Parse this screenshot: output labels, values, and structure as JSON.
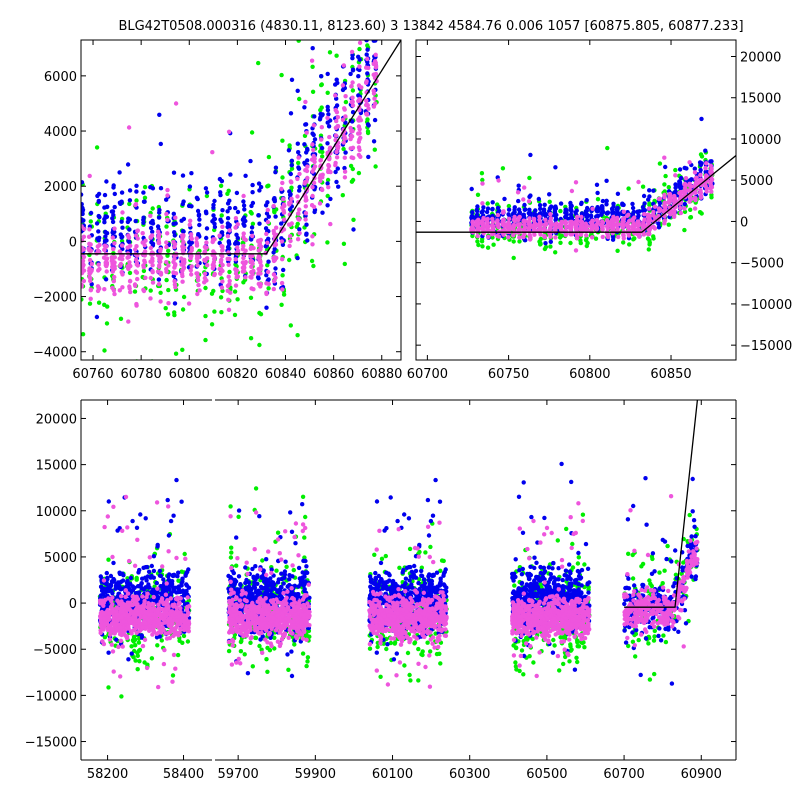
{
  "title": "BLG42T0508.000316 (4830.11, 8123.60) 3 13842 4584.76 0.006 1057 [60875.805, 60877.233]",
  "colors": {
    "series_a": "#00ee00",
    "series_b": "#0000ee",
    "series_c": "#ee55dd",
    "model_line": "#000000",
    "frame": "#000000"
  },
  "chart_data": [
    {
      "type": "scatter",
      "panel": "top-left zoom",
      "xlim": [
        60755,
        60888
      ],
      "ylim": [
        -4300,
        7300
      ],
      "xticks": [
        60760,
        60780,
        60800,
        60820,
        60840,
        60860,
        60880
      ],
      "yticks": [
        -4000,
        -2000,
        0,
        2000,
        4000,
        6000
      ],
      "yaxis_side": "left",
      "series": [
        {
          "name": "green",
          "color": "#00ee00"
        },
        {
          "name": "blue",
          "color": "#0000ee"
        },
        {
          "name": "pink",
          "color": "#ee55dd"
        }
      ],
      "model_line": {
        "x": [
          60755,
          60832,
          60888
        ],
        "y": [
          -450,
          -450,
          7300
        ]
      }
    },
    {
      "type": "scatter",
      "panel": "top-right",
      "xlim": [
        60693,
        60890
      ],
      "ylim": [
        -16800,
        22000
      ],
      "xticks": [
        60700,
        60750,
        60800,
        60850
      ],
      "yticks": [
        -15000,
        -10000,
        -5000,
        0,
        5000,
        10000,
        15000,
        20000
      ],
      "yaxis_side": "right",
      "series": [
        {
          "name": "green",
          "color": "#00ee00"
        },
        {
          "name": "blue",
          "color": "#0000ee"
        },
        {
          "name": "pink",
          "color": "#ee55dd"
        }
      ],
      "model_line": {
        "x": [
          60693,
          60832,
          60890
        ],
        "y": [
          -1300,
          -1300,
          8000
        ]
      }
    },
    {
      "type": "scatter",
      "panel": "bottom full light curve",
      "yaxis_side": "left",
      "ylim": [
        -17000,
        22000
      ],
      "yticks": [
        -15000,
        -10000,
        -5000,
        0,
        5000,
        10000,
        15000,
        20000
      ],
      "xtick_labels": [
        "58200",
        "58400",
        "59700",
        "59900",
        "60100",
        "60300",
        "60500",
        "60700",
        "60900"
      ],
      "series": [
        {
          "name": "green",
          "color": "#00ee00"
        },
        {
          "name": "blue",
          "color": "#0000ee"
        },
        {
          "name": "pink",
          "color": "#ee55dd"
        }
      ],
      "model_line": {
        "x": [
          60700,
          60832,
          60890
        ],
        "y": [
          -450,
          -450,
          22000
        ]
      }
    }
  ]
}
